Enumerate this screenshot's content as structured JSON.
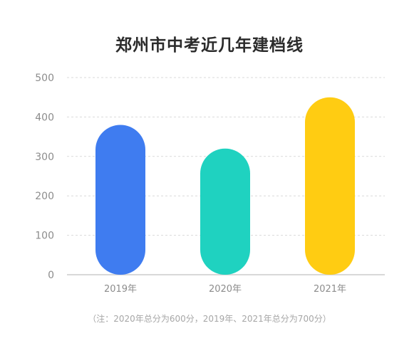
{
  "chart_data": {
    "type": "bar",
    "title": "郑州市中考近几年建档线",
    "categories": [
      "2019年",
      "2020年",
      "2021年"
    ],
    "values": [
      380,
      320,
      450
    ],
    "colors": [
      "#3f7cf0",
      "#1fd2c0",
      "#ffcc12"
    ],
    "yticks": [
      0,
      100,
      200,
      300,
      400,
      500
    ],
    "ylim": [
      0,
      500
    ],
    "grid": true,
    "xlabel": "",
    "ylabel": "",
    "note": "（注：2020年总分为600分，2019年、2021年总分为700分）"
  }
}
